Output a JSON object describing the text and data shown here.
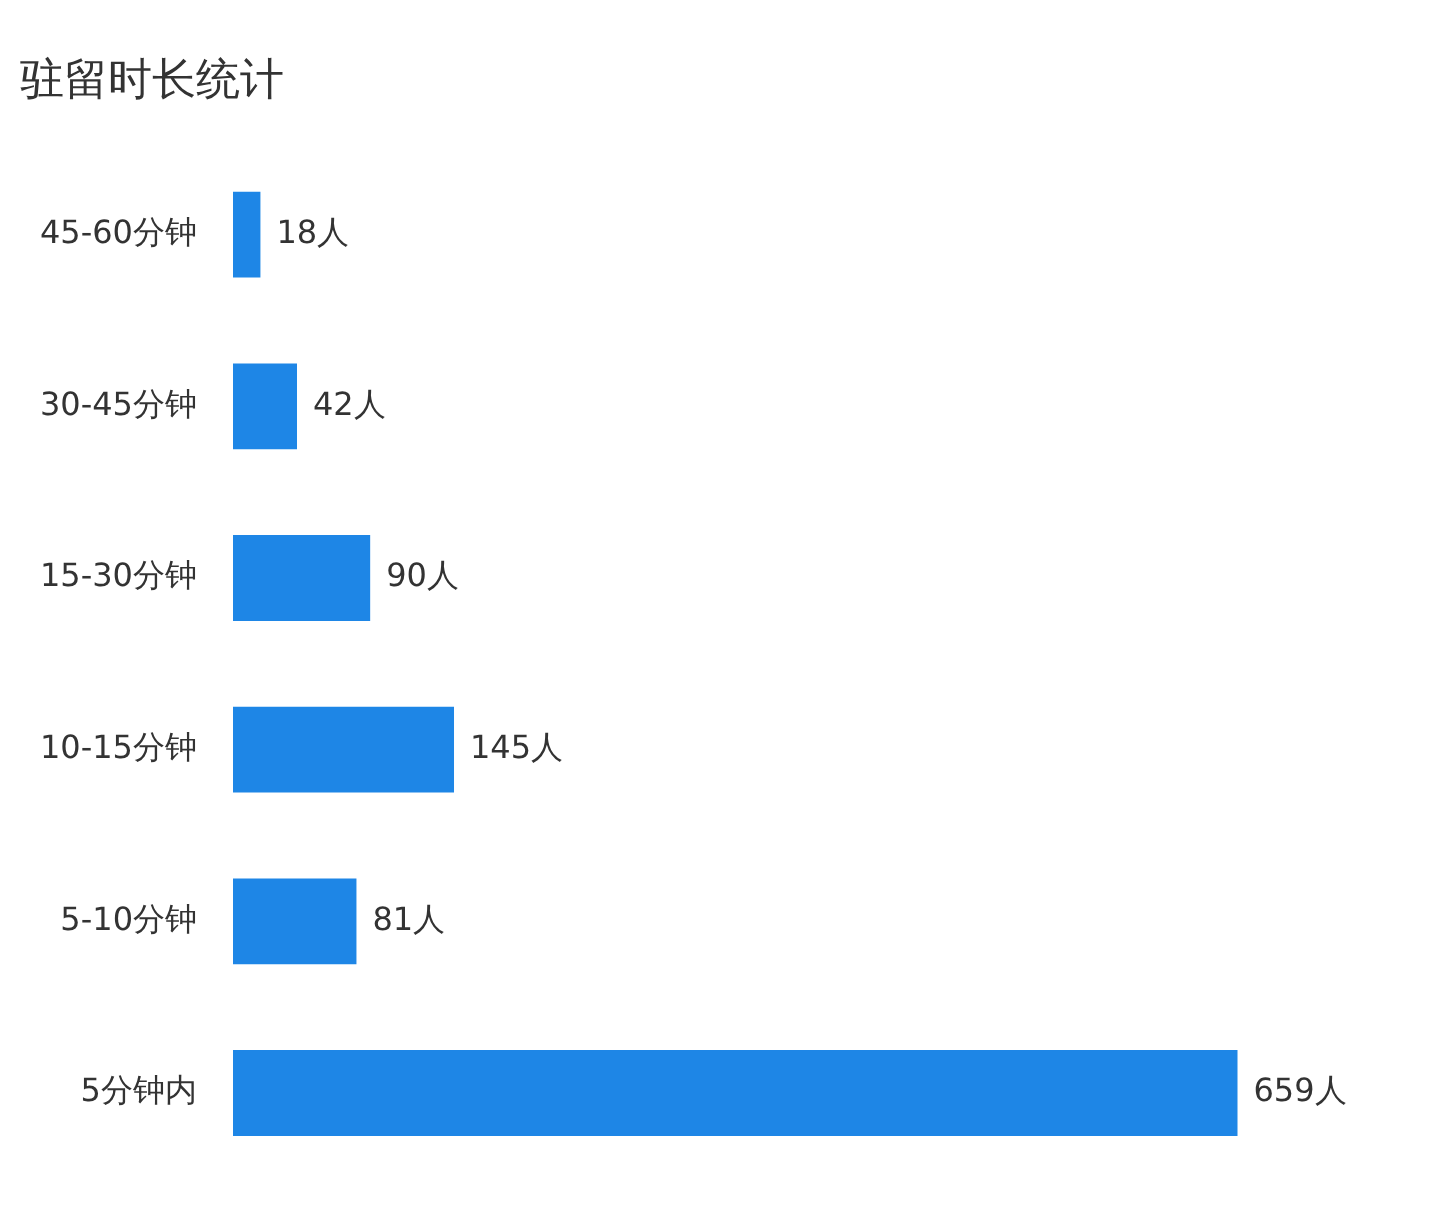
{
  "chart_data": {
    "type": "bar",
    "orientation": "horizontal",
    "title": "驻留时长统计",
    "categories": [
      "45-60分钟",
      "30-45分钟",
      "15-30分钟",
      "10-15分钟",
      "5-10分钟",
      "5分钟内"
    ],
    "values": [
      18,
      42,
      90,
      145,
      81,
      659
    ],
    "value_labels": [
      "18人",
      "42人",
      "90人",
      "145人",
      "81人",
      "659人"
    ],
    "color": "#1e86e6"
  }
}
